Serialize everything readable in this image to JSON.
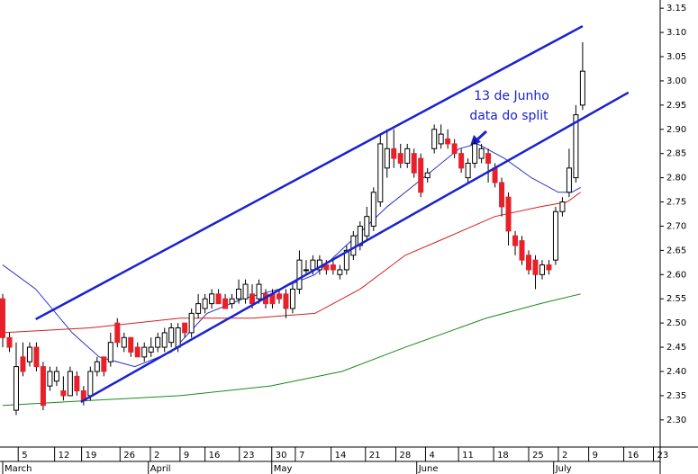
{
  "chart_data": {
    "type": "candlestick",
    "x": [
      0,
      1,
      2,
      3,
      4,
      5,
      6,
      7,
      8,
      9,
      10,
      11,
      12,
      13,
      14,
      15,
      16,
      17,
      18,
      19,
      20,
      21,
      22,
      23,
      24,
      25,
      26,
      27,
      28,
      29,
      30,
      31,
      32,
      33,
      34,
      35,
      36,
      37,
      38,
      39,
      40,
      41,
      42,
      43,
      44,
      45,
      46,
      47,
      48,
      49,
      50,
      51,
      52,
      53,
      54,
      55,
      56,
      57,
      58,
      59,
      60,
      61,
      62,
      63,
      64,
      65,
      66,
      67,
      68,
      69,
      70,
      71,
      72,
      73,
      74,
      75,
      76,
      77,
      78,
      79,
      80,
      81,
      82,
      83,
      84,
      85,
      86
    ],
    "open": [
      2.55,
      2.47,
      2.32,
      2.43,
      2.42,
      2.45,
      2.41,
      2.37,
      2.38,
      2.36,
      2.35,
      2.39,
      2.36,
      2.35,
      2.4,
      2.43,
      2.42,
      2.5,
      2.45,
      2.47,
      2.45,
      2.43,
      2.44,
      2.45,
      2.45,
      2.46,
      2.45,
      2.5,
      2.48,
      2.52,
      2.53,
      2.54,
      2.56,
      2.55,
      2.54,
      2.55,
      2.55,
      2.56,
      2.55,
      2.56,
      2.56,
      2.56,
      2.56,
      2.53,
      2.57,
      2.61,
      2.61,
      2.61,
      2.62,
      2.62,
      2.6,
      2.61,
      2.64,
      2.66,
      2.68,
      2.7,
      2.75,
      2.82,
      2.86,
      2.85,
      2.83,
      2.85,
      2.84,
      2.8,
      2.86,
      2.87,
      2.88,
      2.87,
      2.85,
      2.8,
      2.83,
      2.84,
      2.85,
      2.82,
      2.79,
      2.76,
      2.68,
      2.67,
      2.64,
      2.63,
      2.6,
      2.62,
      2.63,
      2.73,
      2.77,
      2.8,
      2.95
    ],
    "high": [
      2.56,
      2.48,
      2.46,
      2.46,
      2.46,
      2.46,
      2.42,
      2.41,
      2.41,
      2.39,
      2.41,
      2.4,
      2.37,
      2.41,
      2.43,
      2.43,
      2.48,
      2.51,
      2.48,
      2.47,
      2.46,
      2.46,
      2.47,
      2.48,
      2.49,
      2.5,
      2.5,
      2.5,
      2.53,
      2.56,
      2.56,
      2.57,
      2.57,
      2.56,
      2.56,
      2.59,
      2.59,
      2.58,
      2.59,
      2.57,
      2.57,
      2.57,
      2.57,
      2.58,
      2.65,
      2.63,
      2.64,
      2.64,
      2.63,
      2.63,
      2.62,
      2.66,
      2.69,
      2.71,
      2.74,
      2.78,
      2.89,
      2.9,
      2.9,
      2.87,
      2.87,
      2.86,
      2.85,
      2.82,
      2.91,
      2.91,
      2.9,
      2.88,
      2.86,
      2.84,
      2.88,
      2.87,
      2.86,
      2.83,
      2.8,
      2.77,
      2.69,
      2.68,
      2.65,
      2.64,
      2.63,
      2.63,
      2.74,
      2.76,
      2.86,
      2.95,
      3.08
    ],
    "low": [
      2.45,
      2.44,
      2.31,
      2.39,
      2.41,
      2.4,
      2.32,
      2.36,
      2.37,
      2.34,
      2.35,
      2.35,
      2.33,
      2.34,
      2.39,
      2.39,
      2.41,
      2.45,
      2.44,
      2.43,
      2.43,
      2.42,
      2.43,
      2.44,
      2.44,
      2.45,
      2.44,
      2.47,
      2.47,
      2.51,
      2.52,
      2.53,
      2.54,
      2.53,
      2.53,
      2.54,
      2.54,
      2.53,
      2.54,
      2.53,
      2.53,
      2.54,
      2.51,
      2.52,
      2.56,
      2.6,
      2.6,
      2.6,
      2.6,
      2.6,
      2.59,
      2.6,
      2.63,
      2.65,
      2.67,
      2.69,
      2.74,
      2.8,
      2.82,
      2.82,
      2.82,
      2.8,
      2.76,
      2.79,
      2.85,
      2.86,
      2.86,
      2.84,
      2.81,
      2.79,
      2.82,
      2.83,
      2.79,
      2.78,
      2.72,
      2.66,
      2.64,
      2.62,
      2.6,
      2.57,
      2.59,
      2.6,
      2.62,
      2.72,
      2.76,
      2.79,
      2.94
    ],
    "close": [
      2.47,
      2.45,
      2.41,
      2.4,
      2.45,
      2.41,
      2.33,
      2.4,
      2.4,
      2.35,
      2.4,
      2.36,
      2.34,
      2.4,
      2.42,
      2.4,
      2.46,
      2.46,
      2.47,
      2.44,
      2.43,
      2.45,
      2.45,
      2.47,
      2.48,
      2.49,
      2.49,
      2.48,
      2.52,
      2.54,
      2.55,
      2.56,
      2.54,
      2.53,
      2.55,
      2.57,
      2.58,
      2.54,
      2.58,
      2.54,
      2.54,
      2.55,
      2.53,
      2.57,
      2.63,
      2.61,
      2.63,
      2.63,
      2.61,
      2.61,
      2.61,
      2.65,
      2.68,
      2.7,
      2.72,
      2.77,
      2.87,
      2.86,
      2.84,
      2.83,
      2.86,
      2.81,
      2.77,
      2.81,
      2.9,
      2.89,
      2.87,
      2.85,
      2.82,
      2.83,
      2.87,
      2.86,
      2.83,
      2.79,
      2.74,
      2.69,
      2.66,
      2.63,
      2.61,
      2.6,
      2.62,
      2.61,
      2.73,
      2.75,
      2.82,
      2.93,
      3.02
    ],
    "up_color": "#ffffff",
    "down_color": "#e8202a",
    "overlays": [
      {
        "color": "#2a35c8",
        "x": [
          0,
          4.9,
          10.3,
          14.3,
          19.6,
          25,
          30.3,
          35.6,
          41,
          46.3,
          51.7,
          57,
          62.4,
          67.7,
          70.4,
          74.4,
          78.4,
          82.4,
          84.4,
          85.7
        ],
        "values": [
          2.62,
          2.57,
          2.48,
          2.43,
          2.41,
          2.44,
          2.52,
          2.55,
          2.57,
          2.6,
          2.67,
          2.74,
          2.8,
          2.86,
          2.87,
          2.84,
          2.8,
          2.77,
          2.77,
          2.78
        ]
      },
      {
        "color": "#d42020",
        "x": [
          0,
          13,
          26.3,
          37,
          46.3,
          53,
          59.7,
          66.4,
          73,
          79.7,
          83.7,
          85.7
        ],
        "values": [
          2.48,
          2.49,
          2.51,
          2.51,
          2.52,
          2.57,
          2.64,
          2.68,
          2.72,
          2.74,
          2.75,
          2.77
        ]
      },
      {
        "color": "#1a8a1a",
        "x": [
          0,
          13,
          26.3,
          39.7,
          50.3,
          59.7,
          71.7,
          79.7,
          85.7
        ],
        "values": [
          2.33,
          2.34,
          2.35,
          2.37,
          2.4,
          2.45,
          2.51,
          2.54,
          2.56
        ]
      }
    ],
    "trendlines": [
      {
        "color": "#1a22d0",
        "x": [
          4.9,
          86
        ],
        "values": [
          2.508,
          3.113
        ]
      },
      {
        "color": "#1a22d0",
        "x": [
          11.6,
          92.8
        ],
        "values": [
          2.337,
          2.976
        ]
      }
    ],
    "annotations": [
      "13 de Junho",
      "data do split"
    ],
    "xlim": [
      -0.4,
      97.5
    ],
    "ylim": [
      2.244,
      3.167
    ],
    "xticks": [
      {
        "value": 2.3,
        "label": "5"
      },
      {
        "value": 7.7,
        "label": "12"
      },
      {
        "value": 11.7,
        "label": "19"
      },
      {
        "value": 17.4,
        "label": "26"
      },
      {
        "value": 21.9,
        "label": "2"
      },
      {
        "value": 26.3,
        "label": "9"
      },
      {
        "value": 30,
        "label": "16"
      },
      {
        "value": 35.1,
        "label": "23"
      },
      {
        "value": 39.9,
        "label": "30"
      },
      {
        "value": 43.4,
        "label": "7"
      },
      {
        "value": 48.7,
        "label": "14"
      },
      {
        "value": 53.8,
        "label": "21"
      },
      {
        "value": 58.3,
        "label": "28"
      },
      {
        "value": 62.7,
        "label": "4"
      },
      {
        "value": 67.6,
        "label": "11"
      },
      {
        "value": 72.8,
        "label": "18"
      },
      {
        "value": 78,
        "label": "25"
      },
      {
        "value": 82.4,
        "label": "2"
      },
      {
        "value": 86.9,
        "label": "9"
      },
      {
        "value": 92.1,
        "label": "16"
      },
      {
        "value": 96.5,
        "label": "23"
      }
    ],
    "months": [
      {
        "value": 0,
        "label": "March"
      },
      {
        "value": 21.6,
        "label": "April"
      },
      {
        "value": 39.9,
        "label": "May"
      },
      {
        "value": 61.4,
        "label": "June"
      },
      {
        "value": 81.7,
        "label": "July"
      }
    ],
    "yticks": [
      {
        "value": 2.3,
        "label": "2.30"
      },
      2.35,
      {
        "value": 2.4,
        "label": "2.40"
      },
      2.45,
      {
        "value": 2.5,
        "label": "2.50"
      },
      2.55,
      {
        "value": 2.6,
        "label": "2.60"
      },
      2.65,
      {
        "value": 2.7,
        "label": "2.70"
      },
      2.75,
      {
        "value": 2.8,
        "label": "2.80"
      },
      2.85,
      {
        "value": 2.9,
        "label": "2.90"
      },
      2.95,
      {
        "value": 3.0,
        "label": "3.00"
      },
      3.05,
      {
        "value": 3.1,
        "label": "3.10"
      },
      3.15
    ]
  }
}
